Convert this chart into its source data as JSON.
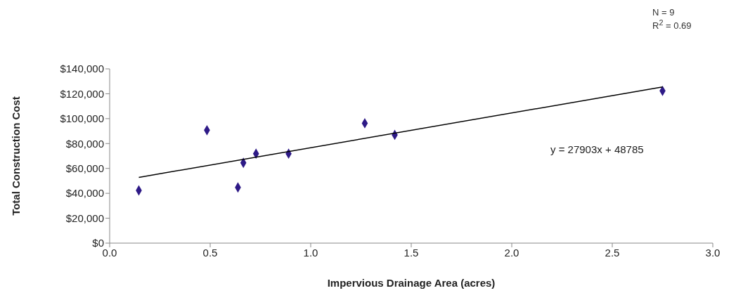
{
  "chart_data": {
    "type": "scatter",
    "xlabel": "Impervious Drainage Area (acres)",
    "ylabel": "Total Construction Cost",
    "xlim": [
      0,
      3
    ],
    "xticks": [
      {
        "value": 0,
        "label": "0.0"
      },
      {
        "value": 0.5,
        "label": "0.5"
      },
      {
        "value": 1,
        "label": "1.0"
      },
      {
        "value": 1.5,
        "label": "1.5"
      },
      {
        "value": 2,
        "label": "2.0"
      },
      {
        "value": 2.5,
        "label": "2.5"
      },
      {
        "value": 3,
        "label": "3.0"
      }
    ],
    "ylim": [
      0,
      140000
    ],
    "yticks": [
      {
        "value": 0,
        "label": "$0"
      },
      {
        "value": 20000,
        "label": "$20,000"
      },
      {
        "value": 40000,
        "label": "$40,000"
      },
      {
        "value": 60000,
        "label": "$60,000"
      },
      {
        "value": 80000,
        "label": "$80,000"
      },
      {
        "value": 100000,
        "label": "$100,000"
      },
      {
        "value": 120000,
        "label": "$120,000"
      },
      {
        "value": 140000,
        "label": "$140,000"
      }
    ],
    "grid": false,
    "marker": "diamond",
    "series": [
      {
        "color": "#2e1a87",
        "x": [
          0.145,
          0.484,
          0.638,
          0.665,
          0.728,
          0.89,
          1.269,
          1.418,
          2.75
        ],
        "values": [
          42300,
          90700,
          44700,
          64500,
          71900,
          71900,
          96300,
          87000,
          122300
        ]
      },
      {
        "type": "line",
        "marker": "none",
        "color": "#000000",
        "x": [
          0.145,
          2.75
        ],
        "values": [
          52800,
          125500
        ]
      }
    ],
    "annotations": [
      "N = 9",
      "R$^{2}$ = 0.69",
      "y = 27903x + 48785"
    ]
  }
}
